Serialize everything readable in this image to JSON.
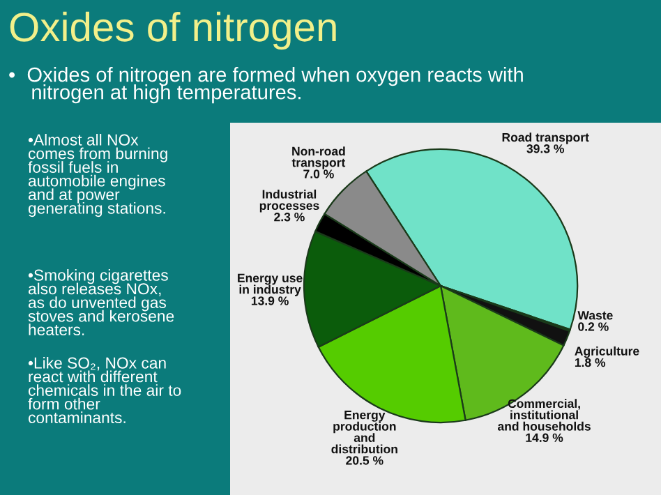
{
  "chart_data": {
    "type": "pie",
    "title": "Oxides of nitrogen",
    "categories": [
      "Road transport",
      "Waste",
      "Agriculture",
      "Commercial,\ninstitutional\nand households",
      "Energy\nproduction\nand\ndistribution",
      "Energy use\nin industry",
      "Industrial\nprocesses",
      "Non-road\ntransport"
    ],
    "values": [
      39.3,
      0.2,
      1.8,
      14.9,
      20.5,
      13.9,
      2.3,
      7.0
    ],
    "value_labels": [
      "39.3 %",
      "0.2 %",
      "1.8 %",
      "14.9 %",
      "20.5 %",
      "13.9 %",
      "2.3 %",
      "7.0 %"
    ],
    "colors": [
      "#70e2c8",
      "#000000",
      "#111111",
      "#5fba1c",
      "#55cc00",
      "#0b5c0b",
      "#000000",
      "#8a8a8a"
    ],
    "annotations": [
      "•  Oxides of nitrogen are formed when oxygen reacts with\n    nitrogen at high temperatures.",
      "•Almost all NOx\ncomes from burning\nfossil fuels in\nautomobile engines\nand at power\ngenerating stations.",
      "•Smoking cigarettes\nalso releases NOx,\nas do unvented gas\nstoves and kerosene\nheaters.",
      "•Like SO₂, NOx can\nreact with different\nchemicals in the air to\nform other\ncontaminants."
    ]
  }
}
